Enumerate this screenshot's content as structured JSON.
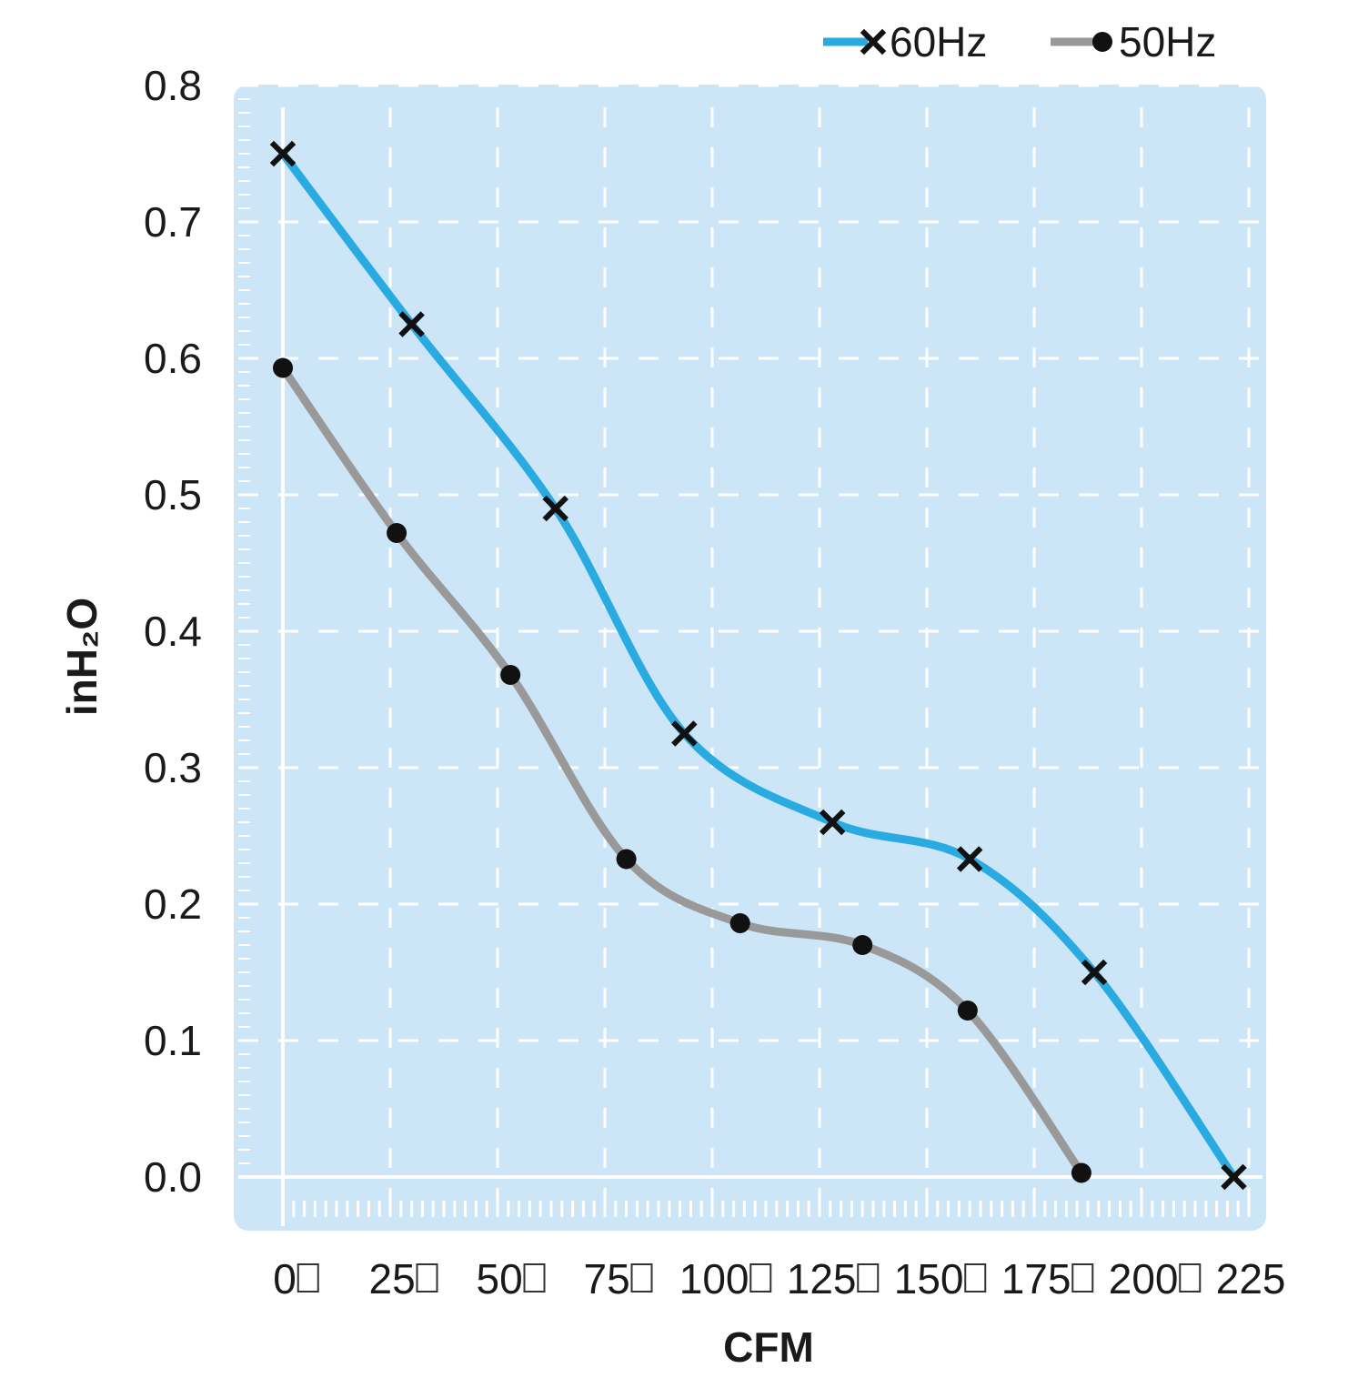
{
  "chart_data": {
    "type": "line",
    "title": "",
    "xlabel": "CFM",
    "ylabel": "inH₂O",
    "xlim": [
      0,
      225
    ],
    "ylim": [
      0,
      0.8
    ],
    "x_ticks": [
      0,
      25,
      50,
      75,
      100,
      125,
      150,
      175,
      200,
      225
    ],
    "x_tick_labels": [
      "0□",
      "25□",
      "50□",
      "75□",
      "100□",
      "125□",
      "150□",
      "175□",
      "200□",
      "225"
    ],
    "y_ticks": [
      0,
      0.1,
      0.2,
      0.3,
      0.4,
      0.5,
      0.6,
      0.7,
      0.8
    ],
    "y_tick_labels": [
      "0.0",
      "0.1",
      "0.2",
      "0.3",
      "0.4",
      "0.5",
      "0.6",
      "0.7",
      "0.8"
    ],
    "grid": true,
    "legend_position": "top-right",
    "plot_background": "#cce5f7",
    "series": [
      {
        "name": "60Hz",
        "color": "#29abe2",
        "marker": "x",
        "x": [
          0,
          30,
          63.5,
          93.5,
          128,
          160,
          189,
          221.5
        ],
        "y": [
          0.75,
          0.625,
          0.49,
          0.325,
          0.26,
          0.233,
          0.15,
          0.0
        ]
      },
      {
        "name": "50Hz",
        "color": "#999999",
        "marker": "o",
        "x": [
          0,
          26.5,
          53,
          80,
          106.5,
          135,
          159.5,
          186
        ],
        "y": [
          0.593,
          0.472,
          0.368,
          0.233,
          0.186,
          0.17,
          0.122,
          0.003
        ]
      }
    ]
  }
}
